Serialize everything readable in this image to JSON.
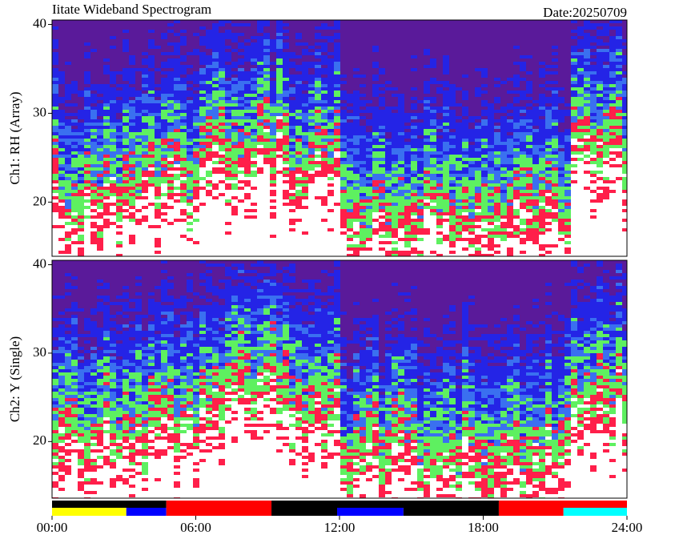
{
  "chart_data": [
    {
      "type": "spectrogram",
      "title": "Iitate Wideband Spectrogram",
      "date_label": "Date:20250709",
      "ylabel": "Ch1: RH (Array)",
      "xlim": [
        0,
        24
      ],
      "ylim": [
        13.9,
        40.5
      ],
      "yticks": [
        20,
        30,
        40
      ]
    },
    {
      "type": "spectrogram",
      "ylabel": "Ch2: Y (Single)",
      "xlim": [
        0,
        24
      ],
      "ylim": [
        13.6,
        40.5
      ],
      "yticks": [
        20,
        30,
        40
      ],
      "xticks": [
        {
          "value": 0,
          "label": "00:00"
        },
        {
          "value": 6,
          "label": "06:00"
        },
        {
          "value": 12,
          "label": "12:00"
        },
        {
          "value": 18,
          "label": "18:00"
        },
        {
          "value": 24,
          "label": "24:00"
        }
      ]
    },
    {
      "type": "timeline",
      "xlim": [
        0,
        24
      ],
      "rows": [
        {
          "segments": [
            {
              "start": 0,
              "end": 4.77,
              "color": "#000000"
            },
            {
              "start": 4.77,
              "end": 9.16,
              "color": "#ff0000"
            },
            {
              "start": 9.16,
              "end": 18.65,
              "color": "#000000"
            },
            {
              "start": 18.65,
              "end": 24,
              "color": "#ff0000"
            }
          ]
        },
        {
          "segments": [
            {
              "start": 0,
              "end": 3.1,
              "color": "#ffff00"
            },
            {
              "start": 3.1,
              "end": 4.77,
              "color": "#0000ff"
            },
            {
              "start": 4.77,
              "end": 9.16,
              "color": "#ff0000"
            },
            {
              "start": 9.16,
              "end": 11.9,
              "color": "#000000"
            },
            {
              "start": 11.9,
              "end": 14.67,
              "color": "#0000ff"
            },
            {
              "start": 14.67,
              "end": 18.65,
              "color": "#000000"
            },
            {
              "start": 18.65,
              "end": 21.35,
              "color": "#ff0000"
            },
            {
              "start": 21.35,
              "end": 24,
              "color": "#00ffff"
            }
          ]
        }
      ]
    }
  ]
}
